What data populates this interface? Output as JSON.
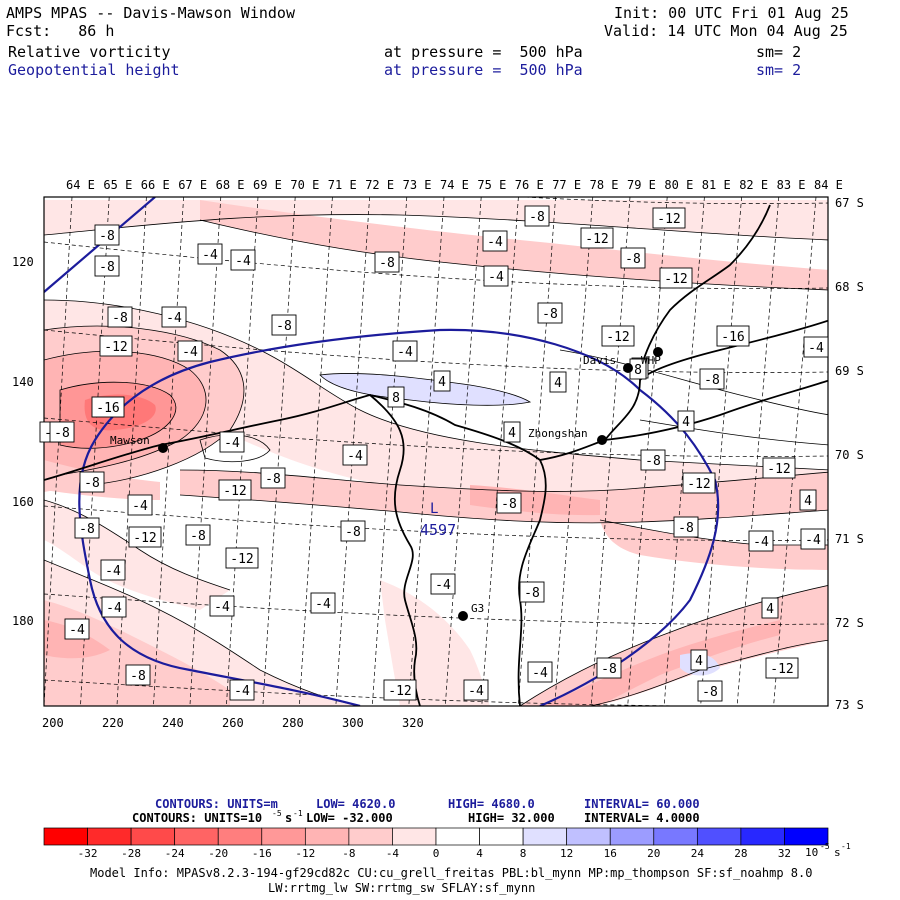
{
  "header": {
    "model_title": "AMPS MPAS -- Davis-Mawson Window",
    "init": "Init: 00 UTC Fri 01 Aug 25",
    "fcst": "Fcst:   86 h",
    "valid": "Valid: 14 UTC Mon 04 Aug 25",
    "field1": {
      "name": "Relative vorticity",
      "level": "at pressure =  500 hPa",
      "sm": "sm= 2"
    },
    "field2": {
      "name": "Geopotential height",
      "level": "at pressure =  500 hPa",
      "sm": "sm= 2"
    }
  },
  "axes": {
    "top_lon_labels": [
      "64 E",
      "65 E",
      "66 E",
      "67 E",
      "68 E",
      "69 E",
      "70 E",
      "71 E",
      "72 E",
      "73 E",
      "74 E",
      "75 E",
      "76 E",
      "77 E",
      "78 E",
      "79 E",
      "80 E",
      "81 E",
      "82 E",
      "83 E",
      "84 E"
    ],
    "right_lat_labels": [
      "67 S",
      "68 S",
      "69 S",
      "70 S",
      "71 S",
      "72 S",
      "73 S"
    ],
    "left_grid_labels": [
      "120",
      "140",
      "160",
      "180"
    ],
    "bottom_grid_labels": [
      "200",
      "220",
      "240",
      "260",
      "280",
      "300",
      "320"
    ]
  },
  "stations": [
    {
      "name": "Davis",
      "label": "Davis"
    },
    {
      "name": "WHP",
      "label": "WHP"
    },
    {
      "name": "Mawson",
      "label": "Mawson"
    },
    {
      "name": "Zhongshan",
      "label": "Zhongshan"
    },
    {
      "name": "G3",
      "label": "G3"
    }
  ],
  "low_center": {
    "letter": "L",
    "value": "4597"
  },
  "contour_labels": [
    "-8",
    "-12",
    "-4",
    "-8",
    "-12",
    "-4",
    "-4",
    "-8",
    "-8",
    "-4",
    "-12",
    "-8",
    "-8",
    "-4",
    "-8",
    "-12",
    "-16",
    "-12",
    "-4",
    "-4",
    "-8",
    "-8",
    "-4",
    "-16",
    "-8",
    "-4",
    "-8",
    "-12",
    "-8",
    "-4",
    "-8",
    "-12",
    "-12",
    "-8",
    "-8",
    "-8",
    "-12",
    "-8",
    "-8",
    "-4",
    "-4",
    "-4",
    "-8",
    "-12",
    "-4",
    "-4",
    "-4",
    "-4",
    "-8",
    "-4",
    "-12",
    "-4",
    "-4",
    "-8",
    "-8",
    "-12",
    "-4",
    "-8",
    "-4",
    "4",
    "4",
    "4",
    "8",
    "4",
    "4",
    "4",
    "4",
    "4",
    "8"
  ],
  "contour_info": {
    "line1": {
      "label": "CONTOURS:  UNITS=m",
      "low": "LOW=  4620.0",
      "high": "HIGH=  4680.0",
      "interval": "INTERVAL=   60.000"
    },
    "line2": {
      "label": "CONTOURS:  UNITS=10",
      "exp": "-5",
      "unit_s": "s",
      "exp_s": "-1",
      "low": "LOW=  -32.000",
      "high": "HIGH=  32.000",
      "interval": "INTERVAL=   4.0000"
    }
  },
  "colorbar": {
    "labels": [
      "-32",
      "-28",
      "-24",
      "-20",
      "-16",
      "-12",
      "-8",
      "-4",
      "0",
      "4",
      "8",
      "12",
      "16",
      "20",
      "24",
      "28",
      "32"
    ],
    "unit_base": "10",
    "unit_exp": "-5",
    "unit_s": "s",
    "unit_s_exp": "-1",
    "colors": [
      "#ff0000",
      "#ff3232",
      "#ff5a5a",
      "#ff7878",
      "#ff9696",
      "#ffb4b4",
      "#ffcccc",
      "#ffe6e6",
      "#ffffff",
      "#ffffff",
      "#e0e0ff",
      "#c0c0ff",
      "#9c9cff",
      "#7878ff",
      "#5050ff",
      "#2828ff",
      "#0000ff"
    ]
  },
  "model_info": {
    "line1": "Model Info: MPASv8.2.3-194-gf29cd82c CU:cu_grell_freitas PBL:bl_mynn MP:mp_thompson SF:sf_noahmp 8.0",
    "line2": "LW:rrtmg_lw SW:rrtmg_sw SFLAY:sf_mynn"
  }
}
